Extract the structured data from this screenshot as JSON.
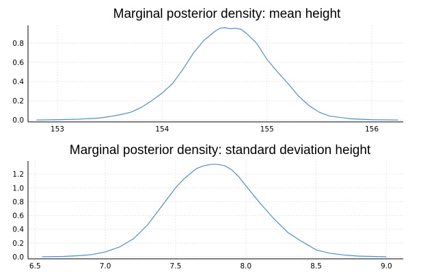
{
  "chart_data": [
    {
      "type": "line",
      "title": "Marginal posterior density: mean height",
      "xlabel": "",
      "ylabel": "",
      "xlim": [
        152.72,
        156.3
      ],
      "ylim": [
        -0.02,
        0.985
      ],
      "xticks": [
        153,
        154,
        155,
        156
      ],
      "yticks": [
        0.0,
        0.2,
        0.4,
        0.6,
        0.8
      ],
      "ytick_labels": [
        "0.0",
        "0.2",
        "0.4",
        "0.6",
        "0.8"
      ],
      "grid": true,
      "legend": "none",
      "color": "#4a8ec7",
      "series": [
        {
          "x": [
            152.8,
            153.0,
            153.2,
            153.4,
            153.5,
            153.6,
            153.7,
            153.8,
            153.9,
            154.0,
            154.1,
            154.2,
            154.3,
            154.4,
            154.5,
            154.55,
            154.6,
            154.65,
            154.7,
            154.75,
            154.8,
            154.9,
            155.0,
            155.1,
            155.2,
            155.3,
            155.4,
            155.5,
            155.6,
            155.8,
            156.0,
            156.25
          ],
          "y": [
            0.0,
            0.003,
            0.008,
            0.02,
            0.035,
            0.055,
            0.08,
            0.13,
            0.2,
            0.28,
            0.38,
            0.53,
            0.7,
            0.83,
            0.92,
            0.955,
            0.96,
            0.95,
            0.955,
            0.945,
            0.905,
            0.8,
            0.63,
            0.5,
            0.38,
            0.25,
            0.15,
            0.08,
            0.04,
            0.012,
            0.003,
            0.0
          ]
        }
      ]
    },
    {
      "type": "line",
      "title": "Marginal posterior density: standard deviation height",
      "xlabel": "",
      "ylabel": "",
      "xlim": [
        6.45,
        9.12
      ],
      "ylim": [
        -0.03,
        1.39
      ],
      "xticks": [
        6.5,
        7.0,
        7.5,
        8.0,
        8.5,
        9.0
      ],
      "xtick_labels": [
        "6.5",
        "7.0",
        "7.5",
        "8.0",
        "8.5",
        "9.0"
      ],
      "yticks": [
        0.0,
        0.2,
        0.4,
        0.6,
        0.8,
        1.0,
        1.2
      ],
      "ytick_labels": [
        "0.0",
        "0.2",
        "0.4",
        "0.6",
        "0.8",
        "1.0",
        "1.2"
      ],
      "grid": true,
      "legend": "none",
      "color": "#4a8ec7",
      "series": [
        {
          "x": [
            6.55,
            6.7,
            6.8,
            6.9,
            7.0,
            7.1,
            7.2,
            7.3,
            7.4,
            7.5,
            7.55,
            7.6,
            7.65,
            7.7,
            7.75,
            7.8,
            7.85,
            7.9,
            7.95,
            8.0,
            8.1,
            8.2,
            8.3,
            8.4,
            8.5,
            8.6,
            8.7,
            8.8,
            9.0
          ],
          "y": [
            0.0,
            0.005,
            0.015,
            0.03,
            0.07,
            0.14,
            0.26,
            0.46,
            0.73,
            1.0,
            1.11,
            1.2,
            1.28,
            1.32,
            1.34,
            1.34,
            1.32,
            1.26,
            1.16,
            1.03,
            0.78,
            0.55,
            0.35,
            0.22,
            0.1,
            0.05,
            0.025,
            0.01,
            0.0
          ]
        }
      ]
    }
  ]
}
